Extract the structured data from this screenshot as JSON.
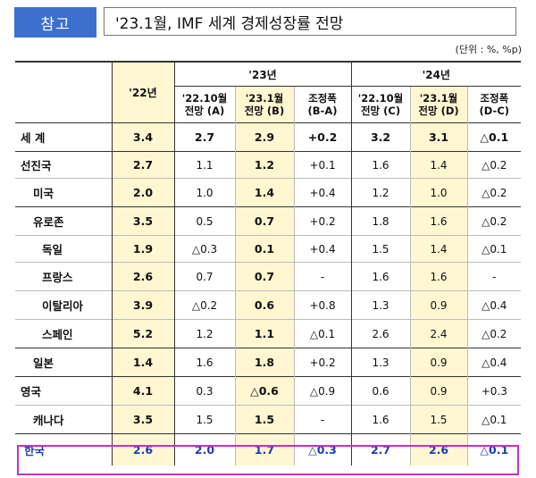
{
  "header": {
    "badge": "참고",
    "title": "'23.1월, IMF 세계 경제성장률 전망",
    "unit": "(단위 : %, %p)"
  },
  "table": {
    "col22": "'22년",
    "group23": "'23년",
    "group24": "'24년",
    "sub": [
      [
        "'22.10월",
        "전망 (A)"
      ],
      [
        "'23.1월",
        "전망 (B)"
      ],
      [
        "조정폭",
        "(B-A)"
      ],
      [
        "'22.10월",
        "전망 (C)"
      ],
      [
        "'23.1월",
        "전망 (D)"
      ],
      [
        "조정폭",
        "(D-C)"
      ]
    ],
    "rows": [
      {
        "name": "세 계",
        "v": [
          "3.4",
          "2.7",
          "2.9",
          "+0.2",
          "3.2",
          "3.1",
          "△0.1"
        ]
      },
      {
        "name": "선진국",
        "v": [
          "2.7",
          "1.1",
          "1.2",
          "+0.1",
          "1.6",
          "1.4",
          "△0.2"
        ]
      },
      {
        "name": "미국",
        "v": [
          "2.0",
          "1.0",
          "1.4",
          "+0.4",
          "1.2",
          "1.0",
          "△0.2"
        ]
      },
      {
        "name": "유로존",
        "v": [
          "3.5",
          "0.5",
          "0.7",
          "+0.2",
          "1.8",
          "1.6",
          "△0.2"
        ]
      },
      {
        "name": "독일",
        "v": [
          "1.9",
          "△0.3",
          "0.1",
          "+0.4",
          "1.5",
          "1.4",
          "△0.1"
        ]
      },
      {
        "name": "프랑스",
        "v": [
          "2.6",
          "0.7",
          "0.7",
          "-",
          "1.6",
          "1.6",
          "-"
        ]
      },
      {
        "name": "이탈리아",
        "v": [
          "3.9",
          "△0.2",
          "0.6",
          "+0.8",
          "1.3",
          "0.9",
          "△0.4"
        ]
      },
      {
        "name": "스페인",
        "v": [
          "5.2",
          "1.2",
          "1.1",
          "△0.1",
          "2.6",
          "2.4",
          "△0.2"
        ]
      },
      {
        "name": "일본",
        "v": [
          "1.4",
          "1.6",
          "1.8",
          "+0.2",
          "1.3",
          "0.9",
          "△0.4"
        ]
      },
      {
        "name": "영국",
        "v": [
          "4.1",
          "0.3",
          "△0.6",
          "△0.9",
          "0.6",
          "0.9",
          "+0.3"
        ]
      },
      {
        "name": "캐나다",
        "v": [
          "3.5",
          "1.5",
          "1.5",
          "-",
          "1.6",
          "1.5",
          "△0.1"
        ]
      },
      {
        "name": "한국",
        "v": [
          "2.6",
          "2.0",
          "1.7",
          "△0.3",
          "2.7",
          "2.6",
          "△0.1"
        ]
      }
    ]
  }
}
